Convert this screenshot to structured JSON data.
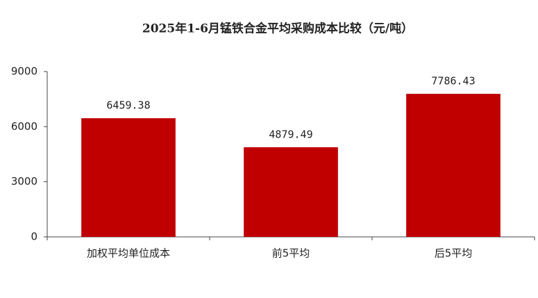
{
  "chart_data": {
    "type": "bar",
    "title": "2025年1-6月锰铁合金平均采购成本比较（元/吨）",
    "categories": [
      "加权平均单位成本",
      "前5平均",
      "后5平均"
    ],
    "values": [
      6459.38,
      4879.49,
      7786.43
    ],
    "color": "#c00000",
    "ylim": [
      0,
      9000
    ],
    "yticks": [
      0,
      3000,
      6000,
      9000
    ],
    "grid": false
  }
}
